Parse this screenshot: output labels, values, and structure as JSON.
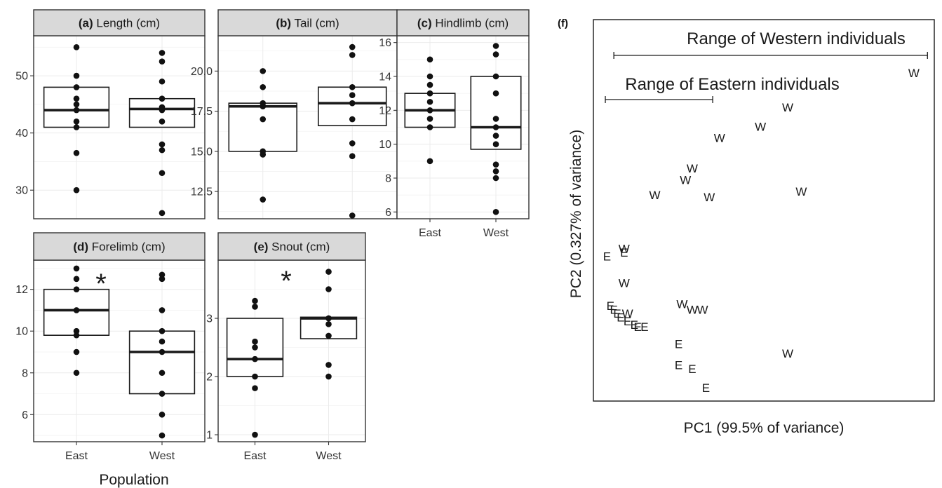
{
  "chart_data": [
    {
      "id": "a",
      "type": "box",
      "panel_label": "(a)",
      "title": "Length (cm)",
      "categories": [
        "East",
        "West"
      ],
      "show_xticks": false,
      "ylim": [
        25,
        57
      ],
      "yticks": [
        30,
        40,
        50
      ],
      "boxes": [
        {
          "q1": 41,
          "median": 44,
          "q3": 48
        },
        {
          "q1": 41,
          "median": 44.2,
          "q3": 46
        }
      ],
      "points": [
        [
          55,
          50,
          48,
          46,
          45,
          44,
          42,
          41,
          36.5,
          30
        ],
        [
          54,
          52.5,
          49,
          46,
          44.5,
          44,
          42,
          38,
          37,
          33,
          26
        ]
      ],
      "significant": false
    },
    {
      "id": "b",
      "type": "box",
      "panel_label": "(b)",
      "title": "Tail (cm)",
      "categories": [
        "East",
        "West"
      ],
      "show_xticks": false,
      "ylim": [
        10.8,
        22.2
      ],
      "yticks": [
        12.5,
        15.0,
        17.5,
        20.0
      ],
      "ytick_labels": [
        "12.5",
        "15.0",
        "17.5",
        "20.0"
      ],
      "boxes": [
        {
          "q1": 15,
          "median": 17.8,
          "q3": 18
        },
        {
          "q1": 16.6,
          "median": 18,
          "q3": 19
        }
      ],
      "points": [
        [
          20,
          19,
          18,
          17.8,
          17,
          15,
          14.8,
          12
        ],
        [
          21.5,
          21,
          19,
          18.5,
          18,
          17,
          15.5,
          14.7,
          11
        ]
      ],
      "significant": false
    },
    {
      "id": "c",
      "type": "box",
      "panel_label": "(c)",
      "title": "Hindlimb (cm)",
      "categories": [
        "East",
        "West"
      ],
      "show_xticks": true,
      "ylim": [
        5.6,
        16.4
      ],
      "yticks": [
        6,
        8,
        10,
        12,
        14,
        16
      ],
      "boxes": [
        {
          "q1": 11,
          "median": 12,
          "q3": 13
        },
        {
          "q1": 9.7,
          "median": 11,
          "q3": 14
        }
      ],
      "points": [
        [
          15,
          14,
          13.5,
          13,
          12.5,
          12,
          11.5,
          11,
          9
        ],
        [
          15.8,
          15.3,
          14,
          13,
          11.5,
          11,
          10.5,
          10,
          8.8,
          8.4,
          8,
          6
        ]
      ],
      "significant": false
    },
    {
      "id": "d",
      "type": "box",
      "panel_label": "(d)",
      "title": "Forelimb (cm)",
      "categories": [
        "East",
        "West"
      ],
      "show_xticks": true,
      "ylim": [
        4.7,
        13.4
      ],
      "yticks": [
        6,
        8,
        10,
        12
      ],
      "boxes": [
        {
          "q1": 9.8,
          "median": 11,
          "q3": 12
        },
        {
          "q1": 7,
          "median": 9,
          "q3": 10
        }
      ],
      "points": [
        [
          13,
          12.5,
          12,
          11,
          10,
          9.8,
          9,
          8
        ],
        [
          12.7,
          12.5,
          11,
          10,
          9.5,
          9,
          8,
          7,
          6,
          5
        ]
      ],
      "significant": true,
      "sig_label": "*"
    },
    {
      "id": "e",
      "type": "box",
      "panel_label": "(e)",
      "title": "Snout (cm)",
      "categories": [
        "East",
        "West"
      ],
      "show_xticks": true,
      "ylim": [
        0.88,
        4.0
      ],
      "yticks": [
        1,
        2,
        3
      ],
      "boxes": [
        {
          "q1": 2,
          "median": 2.3,
          "q3": 3
        },
        {
          "q1": 2.65,
          "median": 3,
          "q3": 3.02
        }
      ],
      "points": [
        [
          3.3,
          3.2,
          2.6,
          2.5,
          2.3,
          2,
          1.8,
          1
        ],
        [
          3.8,
          3.5,
          3,
          3,
          2.9,
          2.7,
          2.2,
          2
        ]
      ],
      "significant": true,
      "sig_label": "*"
    },
    {
      "id": "f",
      "type": "scatter",
      "panel_label": "(f)",
      "xlabel": "PC1 (99.5% of variance)",
      "ylabel": "PC2 (0.327% of variance)",
      "xlim": [
        0,
        100
      ],
      "ylim": [
        0,
        100
      ],
      "range_western_label": "Range of Western individuals",
      "range_eastern_label": "Range of Eastern individuals",
      "range_western": [
        6,
        98
      ],
      "range_eastern": [
        3.5,
        35
      ],
      "points": [
        {
          "label": "E",
          "x": 4,
          "y": 38
        },
        {
          "label": "E",
          "x": 9,
          "y": 39
        },
        {
          "label": "E",
          "x": 5,
          "y": 25
        },
        {
          "label": "E",
          "x": 6,
          "y": 24
        },
        {
          "label": "E",
          "x": 7,
          "y": 23
        },
        {
          "label": "E",
          "x": 8,
          "y": 22
        },
        {
          "label": "E",
          "x": 10,
          "y": 21
        },
        {
          "label": "E",
          "x": 12,
          "y": 20
        },
        {
          "label": "E",
          "x": 13,
          "y": 19.5
        },
        {
          "label": "E",
          "x": 15,
          "y": 19.5
        },
        {
          "label": "E",
          "x": 25,
          "y": 15
        },
        {
          "label": "E",
          "x": 25,
          "y": 9.5
        },
        {
          "label": "E",
          "x": 29,
          "y": 8.5
        },
        {
          "label": "E",
          "x": 33,
          "y": 3.5
        },
        {
          "label": "W",
          "x": 9,
          "y": 40
        },
        {
          "label": "W",
          "x": 9,
          "y": 31
        },
        {
          "label": "W",
          "x": 10,
          "y": 23
        },
        {
          "label": "W",
          "x": 18,
          "y": 54
        },
        {
          "label": "W",
          "x": 27,
          "y": 58
        },
        {
          "label": "W",
          "x": 29,
          "y": 61
        },
        {
          "label": "W",
          "x": 34,
          "y": 53.5
        },
        {
          "label": "W",
          "x": 37,
          "y": 69
        },
        {
          "label": "W",
          "x": 49,
          "y": 72
        },
        {
          "label": "W",
          "x": 57,
          "y": 77
        },
        {
          "label": "W",
          "x": 61,
          "y": 55
        },
        {
          "label": "W",
          "x": 94,
          "y": 86
        },
        {
          "label": "W",
          "x": 26,
          "y": 25.5
        },
        {
          "label": "W",
          "x": 29,
          "y": 24
        },
        {
          "label": "W",
          "x": 32,
          "y": 24
        },
        {
          "label": "W",
          "x": 57,
          "y": 12.5
        }
      ]
    }
  ],
  "shared_xlabel": "Population"
}
